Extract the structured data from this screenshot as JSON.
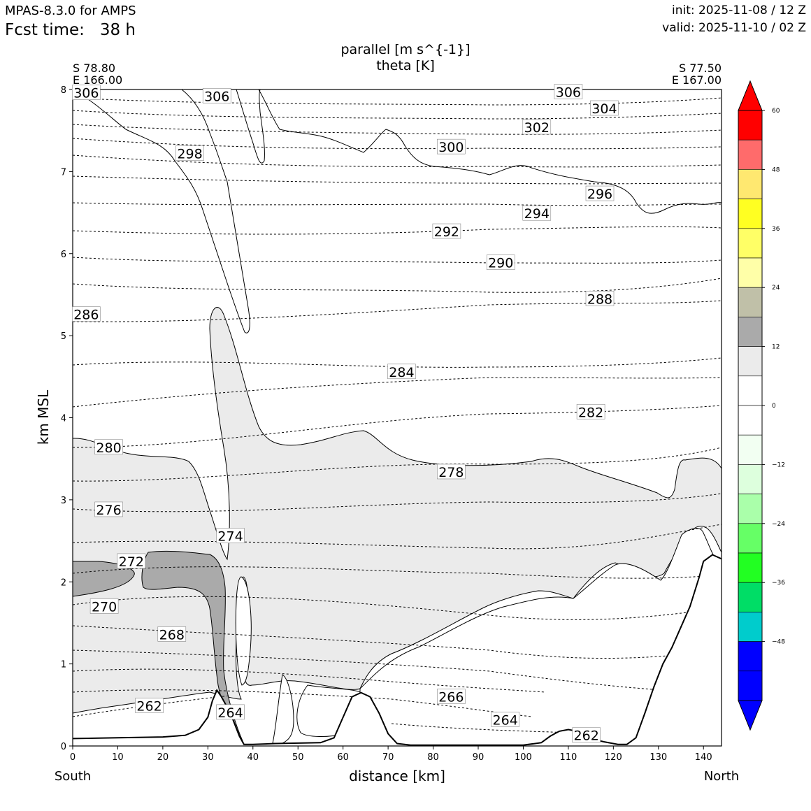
{
  "header": {
    "model": "MPAS-8.3.0 for AMPS",
    "fcst_time": "Fcst time:   38 h",
    "init": "init: 2025-11-08 / 12 Z",
    "valid": "valid: 2025-11-10 / 02 Z"
  },
  "chart_data": {
    "type": "cross-section-contour",
    "title": "parallel [m s^{-1}]",
    "subtitle": "theta [K]",
    "xlabel": "distance [km]",
    "ylabel": "km MSL",
    "xlim": [
      0,
      144
    ],
    "ylim": [
      0,
      8
    ],
    "x_ticks": [
      0,
      10,
      20,
      30,
      40,
      50,
      60,
      70,
      80,
      90,
      100,
      110,
      120,
      130,
      140
    ],
    "y_ticks": [
      0,
      1,
      2,
      3,
      4,
      5,
      6,
      7,
      8
    ],
    "start_point": {
      "lat": "S 78.80",
      "lon": "E 166.00",
      "side": "South"
    },
    "end_point": {
      "lat": "S 77.50",
      "lon": "E 167.00",
      "side": "North"
    },
    "colorbar": {
      "levels": [
        -60,
        -54,
        -48,
        -42,
        -36,
        -30,
        -24,
        -18,
        -12,
        -6,
        0,
        6,
        12,
        18,
        24,
        30,
        36,
        42,
        48,
        54,
        60
      ],
      "tick_labels": [
        "60",
        "48",
        "36",
        "24",
        "12",
        "0",
        "−12",
        "−24",
        "−36",
        "−48"
      ],
      "tick_values": [
        60,
        48,
        36,
        24,
        12,
        0,
        -12,
        -24,
        -36,
        -48
      ],
      "colors": [
        "#0000ff",
        "#00cccc",
        "#00dd66",
        "#22ff22",
        "#66ff66",
        "#aaffaa",
        "#ddffdd",
        "#f2fff2",
        "#ffffff",
        "#ffffff",
        "#ebebeb",
        "#aaaaaa",
        "#c0c0a8",
        "#ffffa8",
        "#ffff66",
        "#ffff22",
        "#ffe870",
        "#ff6b6b",
        "#ff0000"
      ],
      "extend": "both",
      "under_color": "#0000ff",
      "over_color": "#ff0000"
    },
    "theta_contours": [
      {
        "value": 306,
        "label": "306",
        "x": 3,
        "y": 7.96
      },
      {
        "value": 306,
        "label": "306",
        "x": 32,
        "y": 7.92
      },
      {
        "value": 306,
        "label": "306",
        "x": 110,
        "y": 7.97
      },
      {
        "value": 304,
        "label": "304",
        "x": 118,
        "y": 7.77
      },
      {
        "value": 302,
        "label": "302",
        "x": 103,
        "y": 7.54
      },
      {
        "value": 300,
        "label": "300",
        "x": 84,
        "y": 7.3
      },
      {
        "value": 298,
        "label": "298",
        "x": 26,
        "y": 7.22
      },
      {
        "value": 296,
        "label": "296",
        "x": 117,
        "y": 6.73
      },
      {
        "value": 294,
        "label": "294",
        "x": 103,
        "y": 6.49
      },
      {
        "value": 292,
        "label": "292",
        "x": 83,
        "y": 6.27
      },
      {
        "value": 290,
        "label": "290",
        "x": 95,
        "y": 5.89
      },
      {
        "value": 288,
        "label": "288",
        "x": 117,
        "y": 5.45
      },
      {
        "value": 286,
        "label": "286",
        "x": 3,
        "y": 5.26
      },
      {
        "value": 284,
        "label": "284",
        "x": 73,
        "y": 4.56
      },
      {
        "value": 282,
        "label": "282",
        "x": 115,
        "y": 4.07
      },
      {
        "value": 280,
        "label": "280",
        "x": 8,
        "y": 3.64
      },
      {
        "value": 278,
        "label": "278",
        "x": 84,
        "y": 3.34
      },
      {
        "value": 276,
        "label": "276",
        "x": 8,
        "y": 2.88
      },
      {
        "value": 274,
        "label": "274",
        "x": 35,
        "y": 2.56
      },
      {
        "value": 272,
        "label": "272",
        "x": 13,
        "y": 2.25
      },
      {
        "value": 270,
        "label": "270",
        "x": 7,
        "y": 1.7
      },
      {
        "value": 268,
        "label": "268",
        "x": 22,
        "y": 1.36
      },
      {
        "value": 266,
        "label": "266",
        "x": 84,
        "y": 0.6
      },
      {
        "value": 264,
        "label": "264",
        "x": 35,
        "y": 0.41
      },
      {
        "value": 264,
        "label": "264",
        "x": 96,
        "y": 0.32
      },
      {
        "value": 262,
        "label": "262",
        "x": 17,
        "y": 0.49
      },
      {
        "value": 262,
        "label": "262",
        "x": 114,
        "y": 0.13
      }
    ],
    "terrain_profile": {
      "x": [
        0,
        10,
        20,
        25,
        28,
        30,
        31,
        32,
        33,
        35,
        37,
        38,
        40,
        45,
        55,
        58,
        60,
        62,
        64,
        66,
        68,
        70,
        72,
        75,
        80,
        90,
        100,
        104,
        106,
        108,
        110,
        112,
        114,
        118,
        121,
        123,
        125,
        127,
        129,
        131,
        133,
        135,
        137,
        139,
        140,
        142,
        144
      ],
      "y": [
        0.09,
        0.1,
        0.11,
        0.13,
        0.2,
        0.35,
        0.55,
        0.68,
        0.6,
        0.4,
        0.12,
        0.02,
        0.02,
        0.03,
        0.04,
        0.1,
        0.35,
        0.6,
        0.65,
        0.6,
        0.4,
        0.15,
        0.03,
        0.01,
        0.01,
        0.01,
        0.01,
        0.04,
        0.12,
        0.18,
        0.2,
        0.18,
        0.1,
        0.05,
        0.02,
        0.02,
        0.1,
        0.4,
        0.72,
        1.0,
        1.2,
        1.45,
        1.7,
        2.05,
        2.25,
        2.33,
        2.28
      ]
    }
  }
}
